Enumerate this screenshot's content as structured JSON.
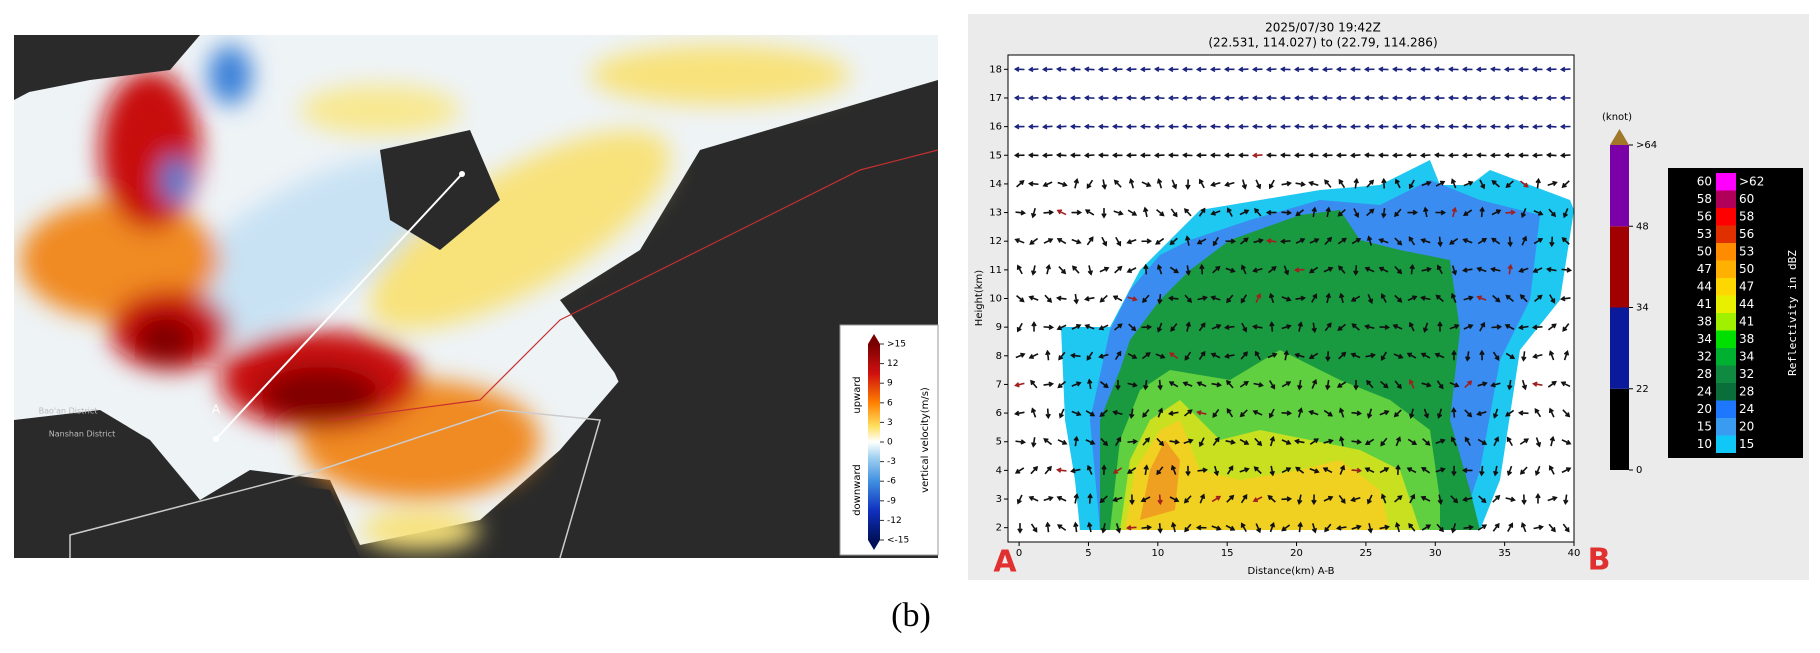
{
  "caption": "(b)",
  "left_panel": {
    "map_labels": {
      "point_a": "A",
      "districts": [
        "Bao'an District",
        "Nanshan District"
      ]
    },
    "colorbar": {
      "title": "vertical velocity(m/s)",
      "upward": "upward",
      "downward": "downward",
      "ticks": [
        {
          "value": 15,
          "label": ">15"
        },
        12,
        9,
        6,
        3,
        0,
        -3,
        -6,
        -9,
        -12,
        {
          "value": -15,
          "label": "<-15"
        }
      ]
    }
  },
  "chart_data": {
    "type": "cross-section",
    "title": "2025/07/30 19:42Z",
    "subtitle": "(22.531, 114.027) to (22.79, 114.286)",
    "xlabel": "Distance(km) A-B",
    "ylabel": "Height(km)",
    "xlim": [
      -0.8,
      40
    ],
    "xticks": [
      0,
      5,
      10,
      15,
      20,
      25,
      30,
      35,
      40
    ],
    "ylim": [
      1.5,
      18.5
    ],
    "yticks": [
      2,
      3,
      4,
      5,
      6,
      7,
      8,
      9,
      10,
      11,
      12,
      13,
      14,
      15,
      16,
      17,
      18
    ],
    "endpoint_labels": {
      "start": "A",
      "end": "B"
    },
    "wind_colorbar": {
      "unit": "(knot)",
      "ticks": [
        0,
        22,
        34,
        48,
        {
          "value": 64,
          "label": ">64"
        }
      ],
      "colors": [
        "#000000",
        "#0b1a9a",
        "#a00000",
        "#7a00a8"
      ],
      "extend_color": "#a07828"
    },
    "reflectivity_legend": {
      "title": "Reflectivity in dBZ",
      "levels": [
        {
          "low": 60,
          "high": {
            "value": 62,
            "label": ">62"
          },
          "color": "#ff00ff"
        },
        {
          "low": 58,
          "high": 60,
          "color": "#b0005a"
        },
        {
          "low": 56,
          "high": 58,
          "color": "#ff0000"
        },
        {
          "low": 53,
          "high": 56,
          "color": "#e03000"
        },
        {
          "low": 50,
          "high": 53,
          "color": "#ff8c00"
        },
        {
          "low": 47,
          "high": 50,
          "color": "#ffb000"
        },
        {
          "low": 44,
          "high": 47,
          "color": "#ffd700"
        },
        {
          "low": 41,
          "high": 44,
          "color": "#e8f000"
        },
        {
          "low": 38,
          "high": 41,
          "color": "#a0f000"
        },
        {
          "low": 34,
          "high": 38,
          "color": "#00e000"
        },
        {
          "low": 32,
          "high": 34,
          "color": "#00b030"
        },
        {
          "low": 28,
          "high": 32,
          "color": "#108a40"
        },
        {
          "low": 24,
          "high": 28,
          "color": "#0a6e3a"
        },
        {
          "low": 20,
          "high": 24,
          "color": "#1e78ff"
        },
        {
          "low": 15,
          "high": 20,
          "color": "#3a9cf0"
        },
        {
          "low": 10,
          "high": 15,
          "color": "#10c8f8"
        }
      ]
    }
  }
}
